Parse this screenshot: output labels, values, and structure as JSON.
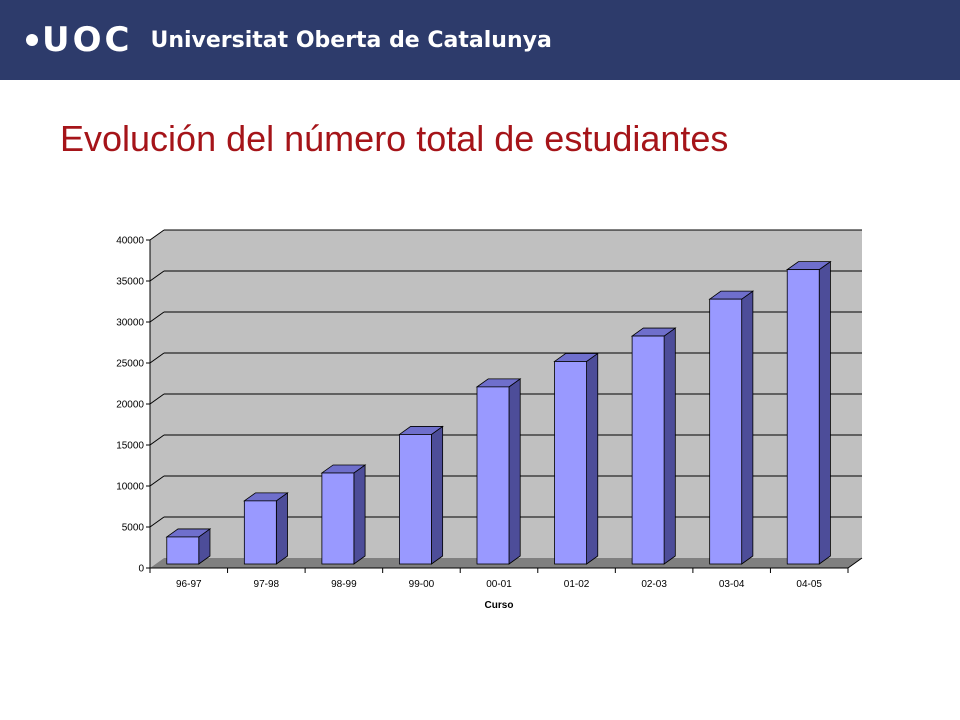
{
  "header": {
    "logo_text": "UOC",
    "institution": "Universitat Oberta de Catalunya",
    "background": "#2d3b6b"
  },
  "slide": {
    "title": "Evolución del número total de estudiantes",
    "title_color": "#a51419"
  },
  "chart_data": {
    "type": "bar",
    "style": "3d-column",
    "categories": [
      "96-97",
      "97-98",
      "98-99",
      "99-00",
      "00-01",
      "01-02",
      "02-03",
      "03-04",
      "04-05"
    ],
    "values": [
      3300,
      7700,
      11100,
      15800,
      21600,
      24700,
      27800,
      32300,
      35900
    ],
    "title": "",
    "xlabel": "Curso",
    "ylabel": "",
    "ylim": [
      0,
      40000
    ],
    "yticks": [
      0,
      5000,
      10000,
      15000,
      20000,
      25000,
      30000,
      35000,
      40000
    ],
    "grid": true,
    "legend": "none",
    "colors": {
      "bar_front": "#9999ff",
      "bar_side": "#4d4d99",
      "bar_top": "#6f6fcc",
      "wall": "#c0c0c0",
      "floor": "#808080"
    }
  }
}
